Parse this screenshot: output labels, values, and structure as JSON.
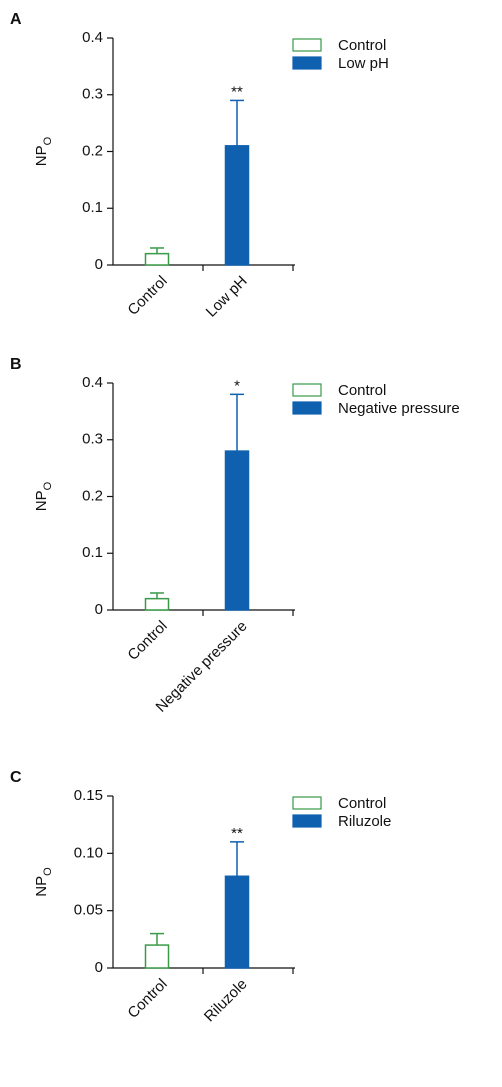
{
  "chart_data": [
    {
      "type": "bar",
      "panel": "A",
      "ylabel": "NP",
      "ylabel_subscript": "O",
      "categories": [
        "Control",
        "Low pH"
      ],
      "series": [
        {
          "name": "Control",
          "color": "#3a9a48",
          "filled": false,
          "values": [
            0.02,
            null
          ],
          "errors": [
            0.01,
            null
          ]
        },
        {
          "name": "Low pH",
          "color": "#1060b0",
          "filled": true,
          "values": [
            null,
            0.21
          ],
          "errors": [
            null,
            0.08
          ],
          "significance": "**"
        }
      ],
      "ylim": [
        0,
        0.4
      ],
      "yticks": [
        0,
        0.1,
        0.2,
        0.3,
        0.4
      ],
      "legend": "top-right"
    },
    {
      "type": "bar",
      "panel": "B",
      "ylabel": "NP",
      "ylabel_subscript": "O",
      "categories": [
        "Control",
        "Negative pressure"
      ],
      "series": [
        {
          "name": "Control",
          "color": "#3a9a48",
          "filled": false,
          "values": [
            0.02,
            null
          ],
          "errors": [
            0.01,
            null
          ]
        },
        {
          "name": "Negative pressure",
          "color": "#1060b0",
          "filled": true,
          "values": [
            null,
            0.28
          ],
          "errors": [
            null,
            0.1
          ],
          "significance": "*"
        }
      ],
      "ylim": [
        0,
        0.4
      ],
      "yticks": [
        0,
        0.1,
        0.2,
        0.3,
        0.4
      ],
      "legend": "top-right"
    },
    {
      "type": "bar",
      "panel": "C",
      "ylabel": "NP",
      "ylabel_subscript": "O",
      "categories": [
        "Control",
        "Riluzole"
      ],
      "series": [
        {
          "name": "Control",
          "color": "#3a9a48",
          "filled": false,
          "values": [
            0.02,
            null
          ],
          "errors": [
            0.01,
            null
          ]
        },
        {
          "name": "Riluzole",
          "color": "#1060b0",
          "filled": true,
          "values": [
            null,
            0.08
          ],
          "errors": [
            null,
            0.03
          ],
          "significance": "**"
        }
      ],
      "ylim": [
        0,
        0.15
      ],
      "yticks": [
        0,
        0.05,
        {
          "value": 0.1,
          "label": "0.10"
        },
        0.15
      ],
      "legend": "top-right"
    }
  ]
}
